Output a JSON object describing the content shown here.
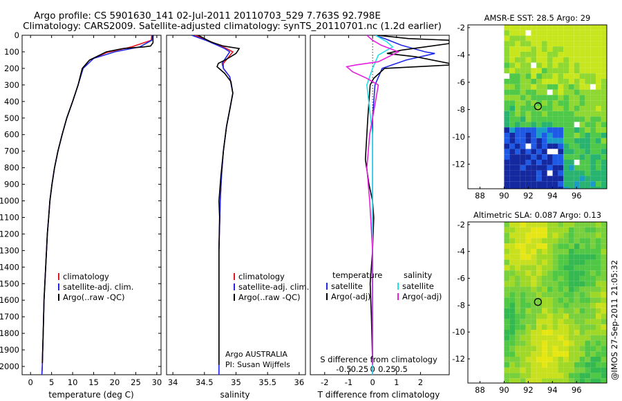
{
  "header": {
    "line1": "Argo profile: CS 5901630_141 02-Jul-2011 20110703_529 7.763S 92.798E",
    "line2": "Climatology: CARS2009. Satellite-adjusted climatology: synTS_20110701.nc (1.2d earlier)"
  },
  "footer_stamp": "@IMOS 27-Sep-2011 21:05:32",
  "colors": {
    "climatology": "#e8141e",
    "satellite": "#1e28e6",
    "argo": "#000000",
    "satellite_s": "#22e0e8",
    "argo_s": "#e81ee0"
  },
  "chart_data": [
    {
      "type": "line",
      "id": "temperature",
      "xlabel": "temperature (deg C)",
      "ylabel": "",
      "xlim": [
        -2,
        31
      ],
      "ylim": [
        2050,
        0
      ],
      "xticks": [
        0,
        5,
        10,
        15,
        20,
        25,
        30
      ],
      "yticks": [
        0,
        100,
        200,
        300,
        400,
        500,
        600,
        700,
        800,
        900,
        1000,
        1100,
        1200,
        1300,
        1400,
        1500,
        1600,
        1700,
        1800,
        1900,
        2000
      ],
      "legend": [
        "climatology",
        "satellite-adj. clim.",
        "Argo(..raw -QC)"
      ],
      "series": [
        {
          "name": "climatology",
          "color": "climatology",
          "points": [
            [
              28.8,
              0
            ],
            [
              28.7,
              30
            ],
            [
              24,
              70
            ],
            [
              18,
              105
            ],
            [
              14,
              150
            ],
            [
              12.3,
              200
            ],
            [
              11.3,
              300
            ],
            [
              10,
              400
            ],
            [
              8.6,
              500
            ],
            [
              7.5,
              600
            ],
            [
              6.5,
              700
            ],
            [
              5.7,
              800
            ],
            [
              5.1,
              900
            ],
            [
              4.6,
              1000
            ],
            [
              4.3,
              1100
            ],
            [
              4,
              1200
            ],
            [
              3.8,
              1300
            ],
            [
              3.6,
              1400
            ],
            [
              3.4,
              1500
            ],
            [
              3.2,
              1600
            ],
            [
              3.1,
              1700
            ],
            [
              3,
              1800
            ],
            [
              2.9,
              1900
            ],
            [
              2.8,
              2000
            ],
            [
              2.7,
              2050
            ]
          ]
        },
        {
          "name": "satellite-adj. clim.",
          "color": "satellite",
          "points": [
            [
              28.9,
              0
            ],
            [
              28.8,
              30
            ],
            [
              26,
              70
            ],
            [
              20,
              100
            ],
            [
              15,
              140
            ],
            [
              12.5,
              200
            ],
            [
              11.3,
              300
            ],
            [
              10,
              400
            ],
            [
              8.6,
              500
            ],
            [
              7.5,
              600
            ],
            [
              6.5,
              700
            ],
            [
              5.7,
              800
            ],
            [
              5.1,
              900
            ],
            [
              4.6,
              1000
            ],
            [
              4.3,
              1100
            ],
            [
              4,
              1200
            ],
            [
              3.8,
              1300
            ],
            [
              3.6,
              1400
            ],
            [
              3.4,
              1500
            ],
            [
              3.2,
              1600
            ],
            [
              3.1,
              1700
            ],
            [
              3,
              1800
            ],
            [
              2.9,
              1900
            ],
            [
              2.8,
              2000
            ],
            [
              2.7,
              2050
            ]
          ]
        },
        {
          "name": "Argo(..raw -QC)",
          "color": "argo",
          "points": [
            [
              29.1,
              0
            ],
            [
              29.1,
              45
            ],
            [
              28.5,
              65
            ],
            [
              27,
              70
            ],
            [
              22,
              80
            ],
            [
              18,
              100
            ],
            [
              14,
              150
            ],
            [
              12.3,
              200
            ],
            [
              11.3,
              300
            ],
            [
              10,
              400
            ],
            [
              8.6,
              500
            ],
            [
              7.5,
              600
            ],
            [
              6.5,
              700
            ],
            [
              5.7,
              800
            ],
            [
              5.1,
              900
            ],
            [
              4.6,
              1000
            ],
            [
              4.3,
              1100
            ],
            [
              4,
              1200
            ],
            [
              3.8,
              1300
            ],
            [
              3.6,
              1400
            ],
            [
              3.4,
              1500
            ],
            [
              3.2,
              1600
            ],
            [
              3.1,
              1700
            ],
            [
              3,
              1800
            ],
            [
              2.9,
              1900
            ],
            [
              2.8,
              1980
            ]
          ]
        }
      ]
    },
    {
      "type": "line",
      "id": "salinity",
      "xlabel": "salinity",
      "xlim": [
        33.9,
        36.1
      ],
      "ylim": [
        2050,
        0
      ],
      "xticks": [
        34,
        34.5,
        35,
        35.5,
        36
      ],
      "legend": [
        "climatology",
        "satellite-adj. clim.",
        "Argo(..raw -QC)"
      ],
      "annotation": [
        "Argo AUSTRALIA",
        "PI: Susan Wijffels"
      ],
      "series": [
        {
          "name": "climatology",
          "color": "climatology",
          "points": [
            [
              34.35,
              0
            ],
            [
              34.55,
              30
            ],
            [
              34.85,
              80
            ],
            [
              34.95,
              100
            ],
            [
              34.8,
              170
            ],
            [
              34.8,
              200
            ],
            [
              34.9,
              250
            ],
            [
              34.95,
              350
            ],
            [
              34.9,
              450
            ],
            [
              34.85,
              550
            ],
            [
              34.8,
              700
            ],
            [
              34.77,
              850
            ],
            [
              34.75,
              1000
            ],
            [
              34.73,
              1300
            ],
            [
              34.73,
              1600
            ],
            [
              34.73,
              2050
            ]
          ]
        },
        {
          "name": "satellite-adj. clim.",
          "color": "satellite",
          "points": [
            [
              34.3,
              0
            ],
            [
              34.52,
              30
            ],
            [
              34.82,
              80
            ],
            [
              34.9,
              100
            ],
            [
              34.78,
              170
            ],
            [
              34.8,
              200
            ],
            [
              34.9,
              250
            ],
            [
              34.95,
              350
            ],
            [
              34.9,
              450
            ],
            [
              34.85,
              550
            ],
            [
              34.8,
              700
            ],
            [
              34.77,
              850
            ],
            [
              34.75,
              1000
            ],
            [
              34.73,
              1300
            ],
            [
              34.73,
              1600
            ],
            [
              34.73,
              2050
            ]
          ]
        },
        {
          "name": "Argo(..raw -QC)",
          "color": "argo",
          "points": [
            [
              34.4,
              0
            ],
            [
              34.6,
              40
            ],
            [
              34.8,
              65
            ],
            [
              35.05,
              80
            ],
            [
              35.0,
              110
            ],
            [
              34.85,
              145
            ],
            [
              34.72,
              170
            ],
            [
              34.7,
              190
            ],
            [
              34.82,
              230
            ],
            [
              34.92,
              280
            ],
            [
              34.95,
              350
            ],
            [
              34.9,
              450
            ],
            [
              34.85,
              550
            ],
            [
              34.8,
              700
            ],
            [
              34.76,
              850
            ],
            [
              34.73,
              1000
            ],
            [
              34.74,
              1100
            ],
            [
              34.73,
              1300
            ],
            [
              34.73,
              1600
            ],
            [
              34.73,
              1990
            ]
          ]
        }
      ]
    },
    {
      "type": "line",
      "id": "difference",
      "xlabel": "T difference from climatology",
      "x2label": "S difference from climatology",
      "xlim": [
        -2.6,
        3.2
      ],
      "ylim": [
        2050,
        0
      ],
      "xticks": [
        -2,
        -1,
        0,
        1,
        2
      ],
      "x2ticks": [
        -0.5,
        -0.25,
        0,
        0.25,
        0.5
      ],
      "legend_headers": [
        "temperature",
        "salinity"
      ],
      "legend": [
        "satellite",
        "Argo(-adj)",
        "satellite",
        "Argo(-adj)"
      ],
      "series": [
        {
          "name": "satellite",
          "group": "temperature",
          "color": "satellite",
          "points": [
            [
              0.1,
              0
            ],
            [
              0.5,
              20
            ],
            [
              1.2,
              60
            ],
            [
              2.2,
              100
            ],
            [
              2.6,
              110
            ],
            [
              1.4,
              150
            ],
            [
              0.4,
              200
            ],
            [
              0.1,
              300
            ],
            [
              0,
              500
            ],
            [
              0,
              2050
            ]
          ]
        },
        {
          "name": "Argo(-adj)",
          "group": "temperature",
          "color": "argo",
          "points": [
            [
              0.2,
              0
            ],
            [
              1.5,
              20
            ],
            [
              3.2,
              30
            ],
            [
              3.2,
              50
            ],
            [
              1.2,
              90
            ],
            [
              0.6,
              110
            ],
            [
              1.8,
              130
            ],
            [
              3.2,
              170
            ],
            [
              3.2,
              180
            ],
            [
              0.5,
              200
            ],
            [
              0.05,
              260
            ],
            [
              -0.1,
              300
            ],
            [
              -0.2,
              500
            ],
            [
              -0.3,
              750
            ],
            [
              -0.15,
              900
            ],
            [
              0,
              1000
            ],
            [
              0.05,
              1100
            ],
            [
              0,
              1300
            ],
            [
              -0.1,
              1500
            ],
            [
              -0.05,
              1700
            ],
            [
              0,
              1980
            ]
          ]
        },
        {
          "name": "satellite",
          "group": "salinity",
          "color": "satellite_s",
          "points": [
            [
              0.05,
              0
            ],
            [
              0.25,
              40
            ],
            [
              0.35,
              70
            ],
            [
              0.1,
              120
            ],
            [
              0,
              200
            ],
            [
              -0.05,
              250
            ],
            [
              -0.1,
              300
            ],
            [
              -0.05,
              450
            ],
            [
              0,
              600
            ],
            [
              0,
              2050
            ]
          ]
        },
        {
          "name": "Argo(-adj)",
          "group": "salinity",
          "color": "argo_s",
          "points": [
            [
              -0.1,
              0
            ],
            [
              0,
              30
            ],
            [
              0.15,
              60
            ],
            [
              0.45,
              100
            ],
            [
              0.1,
              160
            ],
            [
              -0.3,
              180
            ],
            [
              -0.45,
              190
            ],
            [
              -0.35,
              220
            ],
            [
              -0.1,
              260
            ],
            [
              0.1,
              300
            ],
            [
              0.05,
              400
            ],
            [
              -0.05,
              600
            ],
            [
              -0.1,
              800
            ],
            [
              -0.05,
              1000
            ],
            [
              0,
              1300
            ],
            [
              0,
              1990
            ]
          ]
        }
      ]
    },
    {
      "type": "heatmap",
      "id": "sst_map",
      "title": "AMSR-E SST: 28.5 Argo: 29",
      "xlim": [
        87,
        98.5
      ],
      "ylim": [
        -13.8,
        -1.8
      ],
      "xticks": [
        88,
        90,
        92,
        94,
        96
      ],
      "yticks": [
        -2,
        -4,
        -6,
        -8,
        -10,
        -12
      ],
      "data_left_x": 90,
      "marker": {
        "lon": 92.8,
        "lat": -7.76
      }
    },
    {
      "type": "heatmap",
      "id": "sla_map",
      "title": "Altimetric SLA: 0.087 Argo: 0.13",
      "xlim": [
        87,
        98.5
      ],
      "ylim": [
        -13.8,
        -1.8
      ],
      "xticks": [
        88,
        90,
        92,
        94,
        96
      ],
      "yticks": [
        -2,
        -4,
        -6,
        -8,
        -10,
        -12
      ],
      "data_left_x": 90,
      "marker": {
        "lon": 92.8,
        "lat": -7.76
      }
    }
  ]
}
